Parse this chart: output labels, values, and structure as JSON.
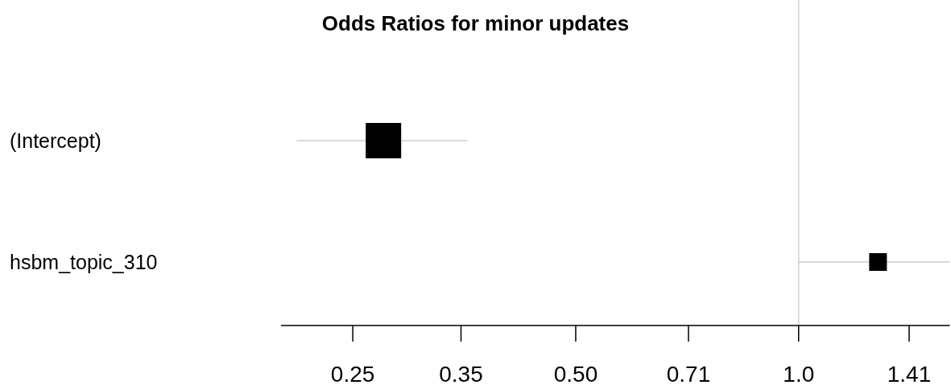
{
  "chart_data": {
    "type": "bubble",
    "title": "Odds Ratios for minor updates",
    "orientation": "horizontal",
    "categories": [
      "(Intercept)",
      "hsbm_topic_310"
    ],
    "values": [
      0.275,
      1.28
    ],
    "errors": [
      [
        0.21,
        0.357
      ],
      [
        1.0,
        1.6
      ]
    ],
    "sizes": [
      1,
      0.25
    ],
    "color": "#000000",
    "marker": "square",
    "log": "x",
    "xlim": [
      0.2,
      1.6
    ],
    "xticks": [
      {
        "value": 0.25,
        "label": "0.25"
      },
      {
        "value": 0.35,
        "label": "0.35"
      },
      {
        "value": 0.5,
        "label": "0.50"
      },
      {
        "value": 0.71,
        "label": "0.71"
      },
      {
        "value": 1.0,
        "label": "1.0"
      },
      {
        "value": 1.41,
        "label": "1.41"
      }
    ],
    "ref_lines": [
      {
        "axis": "x",
        "value": 1.0,
        "color": "#d3d3d3"
      }
    ],
    "grid": false
  }
}
